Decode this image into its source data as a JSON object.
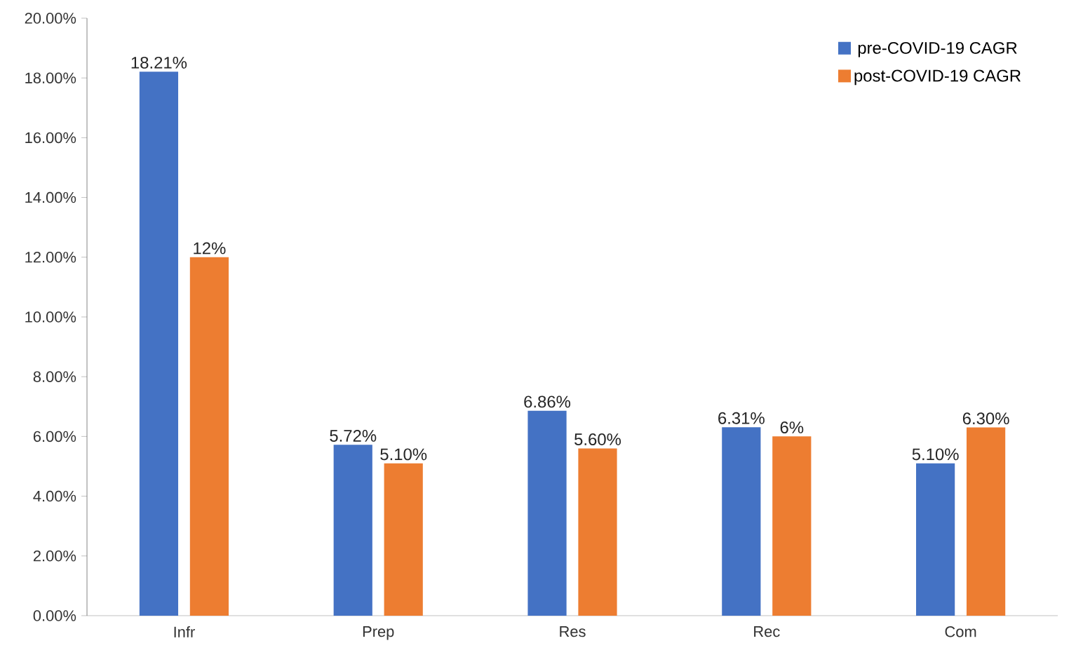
{
  "chart_data": {
    "type": "bar",
    "categories": [
      "Infr",
      "Prep",
      "Res",
      "Rec",
      "Com"
    ],
    "series": [
      {
        "name": "pre-COVID-19 CAGR",
        "color": "#4472c4",
        "values": [
          18.21,
          5.72,
          6.86,
          6.31,
          5.1
        ],
        "value_labels": [
          "18.21%",
          "5.72%",
          "6.86%",
          "6.31%",
          "5.10%"
        ]
      },
      {
        "name": "post-COVID-19 CAGR",
        "color": "#ed7d31",
        "values": [
          12,
          5.1,
          5.6,
          6,
          6.3
        ],
        "value_labels": [
          "12%",
          "5.10%",
          "5.60%",
          "6%",
          "6.30%"
        ]
      }
    ],
    "ylim": [
      0,
      20
    ],
    "yticks": [
      {
        "value": 0,
        "label": "0.00%"
      },
      {
        "value": 2,
        "label": "2.00%"
      },
      {
        "value": 4,
        "label": "4.00%"
      },
      {
        "value": 6,
        "label": "6.00%"
      },
      {
        "value": 8,
        "label": "8.00%"
      },
      {
        "value": 10,
        "label": "10.00%"
      },
      {
        "value": 12,
        "label": "12.00%"
      },
      {
        "value": 14,
        "label": "14.00%"
      },
      {
        "value": 16,
        "label": "16.00%"
      },
      {
        "value": 18,
        "label": "18.00%"
      },
      {
        "value": 20,
        "label": "20.00%"
      }
    ],
    "legend": "top right",
    "grid": false
  }
}
